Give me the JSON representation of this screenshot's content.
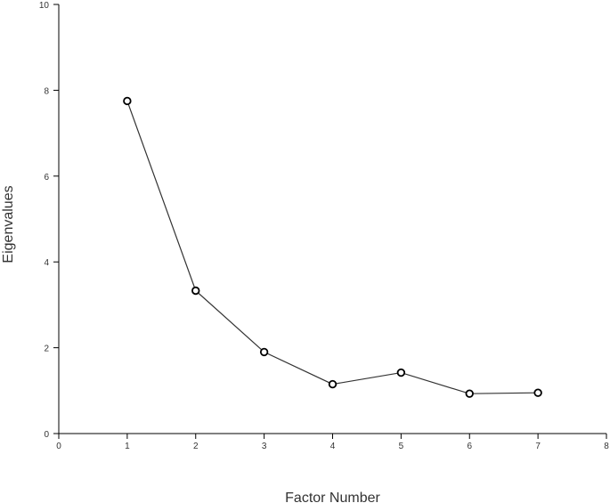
{
  "chart_data": {
    "type": "line",
    "xlabel": "Factor Number",
    "ylabel": "Eigenvalues",
    "xlim": [
      0,
      8
    ],
    "ylim": [
      0,
      10
    ],
    "x_ticks": [
      "0",
      "1",
      "2",
      "3",
      "4",
      "5",
      "6",
      "7",
      "8"
    ],
    "y_ticks": [
      "0",
      "2",
      "4",
      "6",
      "8",
      "10"
    ],
    "grid": false,
    "series": [
      {
        "x": [
          1,
          2,
          3,
          4,
          5,
          6,
          7
        ],
        "values": [
          7.75,
          3.33,
          1.9,
          1.15,
          1.42,
          0.93,
          0.95
        ]
      }
    ]
  }
}
